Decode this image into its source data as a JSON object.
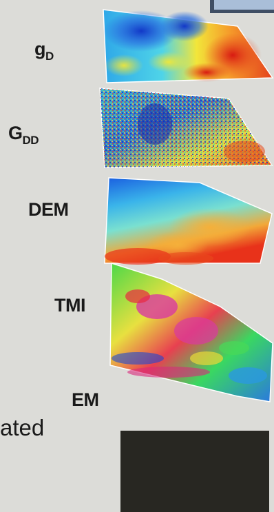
{
  "labels": {
    "gd_main": "g",
    "gd_sub": "D",
    "gdd_main": "G",
    "gdd_sub": "DD",
    "dem": "DEM",
    "tmi": "TMI",
    "em": "EM"
  },
  "partial_text": "ated",
  "colors": {
    "background": "#dcdcd8",
    "dark_block": "#282722",
    "inset_frame": "#3f4e64",
    "inset_fill": "#a9bed8"
  }
}
